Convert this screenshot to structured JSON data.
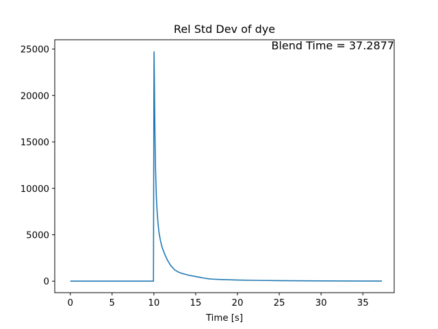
{
  "chart_data": {
    "type": "line",
    "title": "Rel Std Dev of dye",
    "xlabel": "Time [s]",
    "ylabel": "",
    "xlim": [
      -1.86,
      38.75
    ],
    "ylim": [
      -1238,
      26000
    ],
    "xticks": [
      0,
      5,
      10,
      15,
      20,
      25,
      30,
      35
    ],
    "yticks": [
      0,
      5000,
      10000,
      15000,
      20000,
      25000
    ],
    "grid": false,
    "annotation": "Blend Time = 37.2877",
    "series": [
      {
        "color": "#1f77b4",
        "x": [
          0,
          5,
          9.9,
          9.95,
          10.0,
          10.02,
          10.05,
          10.1,
          10.15,
          10.2,
          10.3,
          10.4,
          10.5,
          10.6,
          10.8,
          11.0,
          11.3,
          11.6,
          12.0,
          12.5,
          13.0,
          13.5,
          14.0,
          14.5,
          15.0,
          15.5,
          16.0,
          16.5,
          17.0,
          18.0,
          19.0,
          20.0,
          22.0,
          25.0,
          28.0,
          30.0,
          33.0,
          35.0,
          37.2877
        ],
        "y": [
          0,
          0,
          0,
          0,
          20000,
          24700,
          22500,
          18000,
          14500,
          12000,
          9000,
          7300,
          6200,
          5300,
          4300,
          3600,
          2900,
          2300,
          1700,
          1200,
          950,
          800,
          680,
          580,
          500,
          420,
          330,
          260,
          220,
          180,
          150,
          120,
          90,
          60,
          40,
          30,
          20,
          15,
          10
        ]
      }
    ]
  }
}
